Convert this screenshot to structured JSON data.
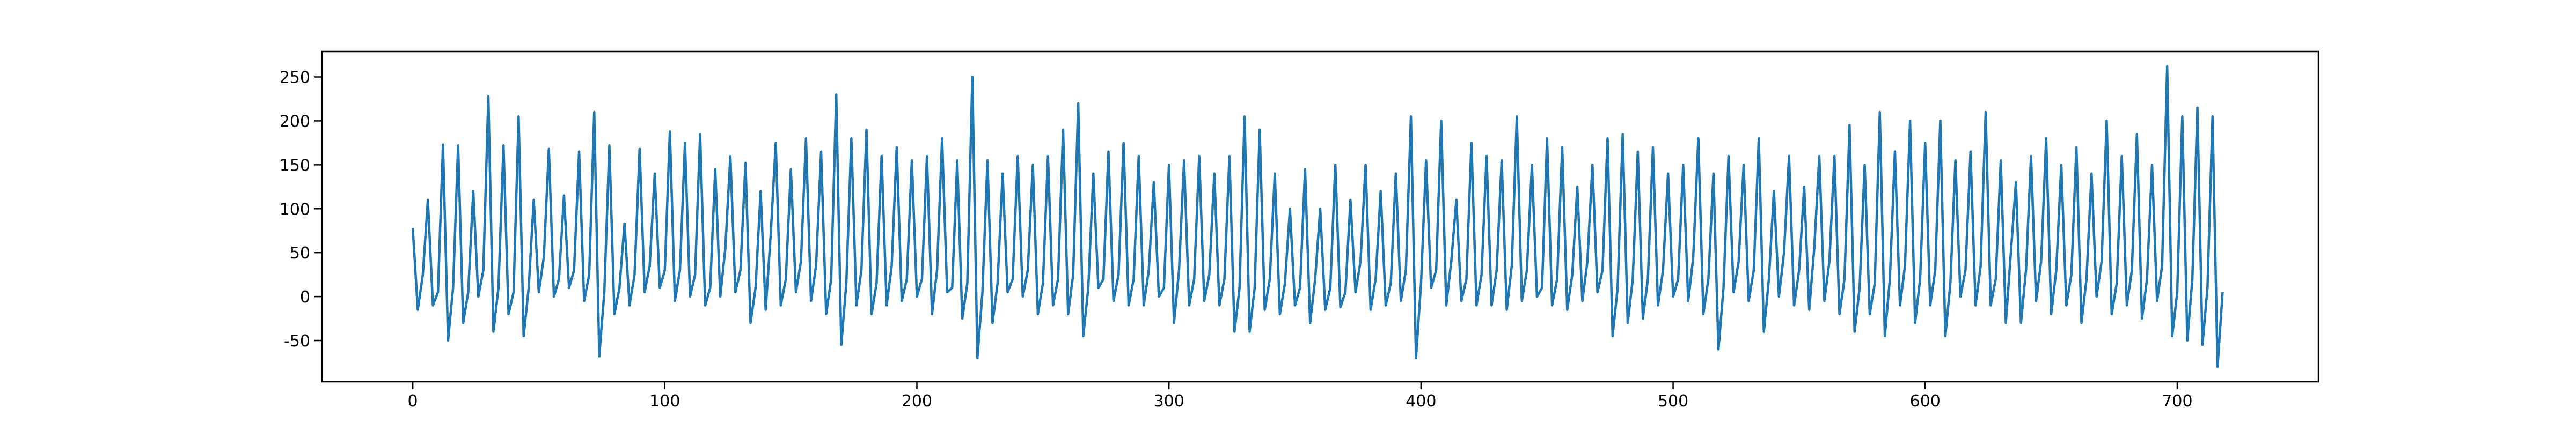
{
  "chart_data": {
    "type": "line",
    "color": "#1f77b4",
    "xlim": [
      -36,
      756
    ],
    "ylim": [
      -97,
      279
    ],
    "xticks": [
      0,
      100,
      200,
      300,
      400,
      500,
      600,
      700
    ],
    "yticks": [
      -50,
      0,
      50,
      100,
      150,
      200,
      250
    ],
    "x": [
      0,
      2,
      4,
      6,
      8,
      10,
      12,
      14,
      16,
      18,
      20,
      22,
      24,
      26,
      28,
      30,
      32,
      34,
      36,
      38,
      40,
      42,
      44,
      46,
      48,
      50,
      52,
      54,
      56,
      58,
      60,
      62,
      64,
      66,
      68,
      70,
      72,
      74,
      76,
      78,
      80,
      82,
      84,
      86,
      88,
      90,
      92,
      94,
      96,
      98,
      100,
      102,
      104,
      106,
      108,
      110,
      112,
      114,
      116,
      118,
      120,
      122,
      124,
      126,
      128,
      130,
      132,
      134,
      136,
      138,
      140,
      142,
      144,
      146,
      148,
      150,
      152,
      154,
      156,
      158,
      160,
      162,
      164,
      166,
      168,
      170,
      172,
      174,
      176,
      178,
      180,
      182,
      184,
      186,
      188,
      190,
      192,
      194,
      196,
      198,
      200,
      202,
      204,
      206,
      208,
      210,
      212,
      214,
      216,
      218,
      220,
      222,
      224,
      226,
      228,
      230,
      232,
      234,
      236,
      238,
      240,
      242,
      244,
      246,
      248,
      250,
      252,
      254,
      256,
      258,
      260,
      262,
      264,
      266,
      268,
      270,
      272,
      274,
      276,
      278,
      280,
      282,
      284,
      286,
      288,
      290,
      292,
      294,
      296,
      298,
      300,
      302,
      304,
      306,
      308,
      310,
      312,
      314,
      316,
      318,
      320,
      322,
      324,
      326,
      328,
      330,
      332,
      334,
      336,
      338,
      340,
      342,
      344,
      346,
      348,
      350,
      352,
      354,
      356,
      358,
      360,
      362,
      364,
      366,
      368,
      370,
      372,
      374,
      376,
      378,
      380,
      382,
      384,
      386,
      388,
      390,
      392,
      394,
      396,
      398,
      400,
      402,
      404,
      406,
      408,
      410,
      412,
      414,
      416,
      418,
      420,
      422,
      424,
      426,
      428,
      430,
      432,
      434,
      436,
      438,
      440,
      442,
      444,
      446,
      448,
      450,
      452,
      454,
      456,
      458,
      460,
      462,
      464,
      466,
      468,
      470,
      472,
      474,
      476,
      478,
      480,
      482,
      484,
      486,
      488,
      490,
      492,
      494,
      496,
      498,
      500,
      502,
      504,
      506,
      508,
      510,
      512,
      514,
      516,
      518,
      520,
      522,
      524,
      526,
      528,
      530,
      532,
      534,
      536,
      538,
      540,
      542,
      544,
      546,
      548,
      550,
      552,
      554,
      556,
      558,
      560,
      562,
      564,
      566,
      568,
      570,
      572,
      574,
      576,
      578,
      580,
      582,
      584,
      586,
      588,
      590,
      592,
      594,
      596,
      598,
      600,
      602,
      604,
      606,
      608,
      610,
      612,
      614,
      616,
      618,
      620,
      622,
      624,
      626,
      628,
      630,
      632,
      634,
      636,
      638,
      640,
      642,
      644,
      646,
      648,
      650,
      652,
      654,
      656,
      658,
      660,
      662,
      664,
      666,
      668,
      670,
      672,
      674,
      676,
      678,
      680,
      682,
      684,
      686,
      688,
      690,
      692,
      694,
      696,
      698,
      700,
      702,
      704,
      706,
      708,
      710,
      712,
      714,
      716,
      718
    ],
    "values": [
      78,
      -15,
      25,
      110,
      -10,
      5,
      173,
      -50,
      10,
      172,
      -30,
      5,
      120,
      0,
      30,
      228,
      -40,
      10,
      172,
      -20,
      5,
      205,
      -45,
      10,
      110,
      5,
      45,
      168,
      0,
      20,
      115,
      10,
      30,
      165,
      -5,
      25,
      210,
      -68,
      5,
      172,
      -20,
      10,
      83,
      -10,
      25,
      168,
      5,
      35,
      140,
      10,
      30,
      188,
      -5,
      30,
      175,
      0,
      25,
      185,
      -10,
      10,
      145,
      0,
      55,
      160,
      5,
      30,
      152,
      -30,
      10,
      120,
      -15,
      70,
      175,
      -10,
      20,
      145,
      5,
      40,
      180,
      -5,
      35,
      165,
      -20,
      20,
      230,
      -55,
      15,
      180,
      -10,
      30,
      190,
      -20,
      15,
      160,
      -10,
      35,
      170,
      -5,
      20,
      155,
      0,
      20,
      160,
      -20,
      30,
      180,
      5,
      10,
      155,
      -25,
      15,
      250,
      -70,
      5,
      155,
      -30,
      15,
      140,
      5,
      20,
      160,
      0,
      30,
      150,
      -20,
      15,
      160,
      -10,
      20,
      190,
      -20,
      25,
      220,
      -45,
      10,
      140,
      10,
      20,
      165,
      -5,
      25,
      175,
      -10,
      20,
      160,
      -10,
      30,
      130,
      0,
      10,
      150,
      -30,
      30,
      155,
      -10,
      20,
      160,
      -5,
      25,
      140,
      -10,
      20,
      160,
      -40,
      10,
      205,
      -40,
      10,
      190,
      -15,
      20,
      140,
      -20,
      15,
      100,
      -10,
      10,
      145,
      -30,
      20,
      100,
      -15,
      10,
      150,
      -12,
      5,
      110,
      5,
      40,
      150,
      -15,
      20,
      120,
      -10,
      15,
      140,
      -5,
      30,
      205,
      -70,
      15,
      155,
      10,
      30,
      200,
      -10,
      40,
      110,
      -5,
      20,
      175,
      -10,
      25,
      160,
      -10,
      30,
      155,
      -15,
      35,
      205,
      -5,
      30,
      150,
      0,
      10,
      180,
      -10,
      20,
      170,
      -15,
      25,
      125,
      -5,
      40,
      150,
      5,
      30,
      180,
      -45,
      10,
      185,
      -30,
      20,
      165,
      -25,
      20,
      170,
      -10,
      30,
      140,
      0,
      20,
      150,
      -5,
      45,
      180,
      -20,
      20,
      140,
      -60,
      10,
      160,
      5,
      40,
      150,
      -5,
      30,
      180,
      -40,
      20,
      120,
      0,
      50,
      160,
      -10,
      30,
      125,
      -15,
      55,
      160,
      -5,
      40,
      160,
      -20,
      20,
      195,
      -40,
      10,
      150,
      -20,
      15,
      210,
      -45,
      20,
      165,
      -10,
      35,
      200,
      -30,
      20,
      175,
      -10,
      30,
      200,
      -45,
      15,
      155,
      0,
      30,
      165,
      -10,
      35,
      210,
      -10,
      20,
      155,
      -30,
      50,
      130,
      -30,
      30,
      160,
      -5,
      40,
      180,
      -20,
      30,
      150,
      -10,
      25,
      170,
      -30,
      20,
      140,
      0,
      40,
      200,
      -20,
      15,
      160,
      -10,
      30,
      185,
      -25,
      20,
      150,
      -5,
      35,
      262,
      -45,
      5,
      205,
      -50,
      20,
      215,
      -55,
      10,
      205,
      -80,
      5
    ]
  }
}
